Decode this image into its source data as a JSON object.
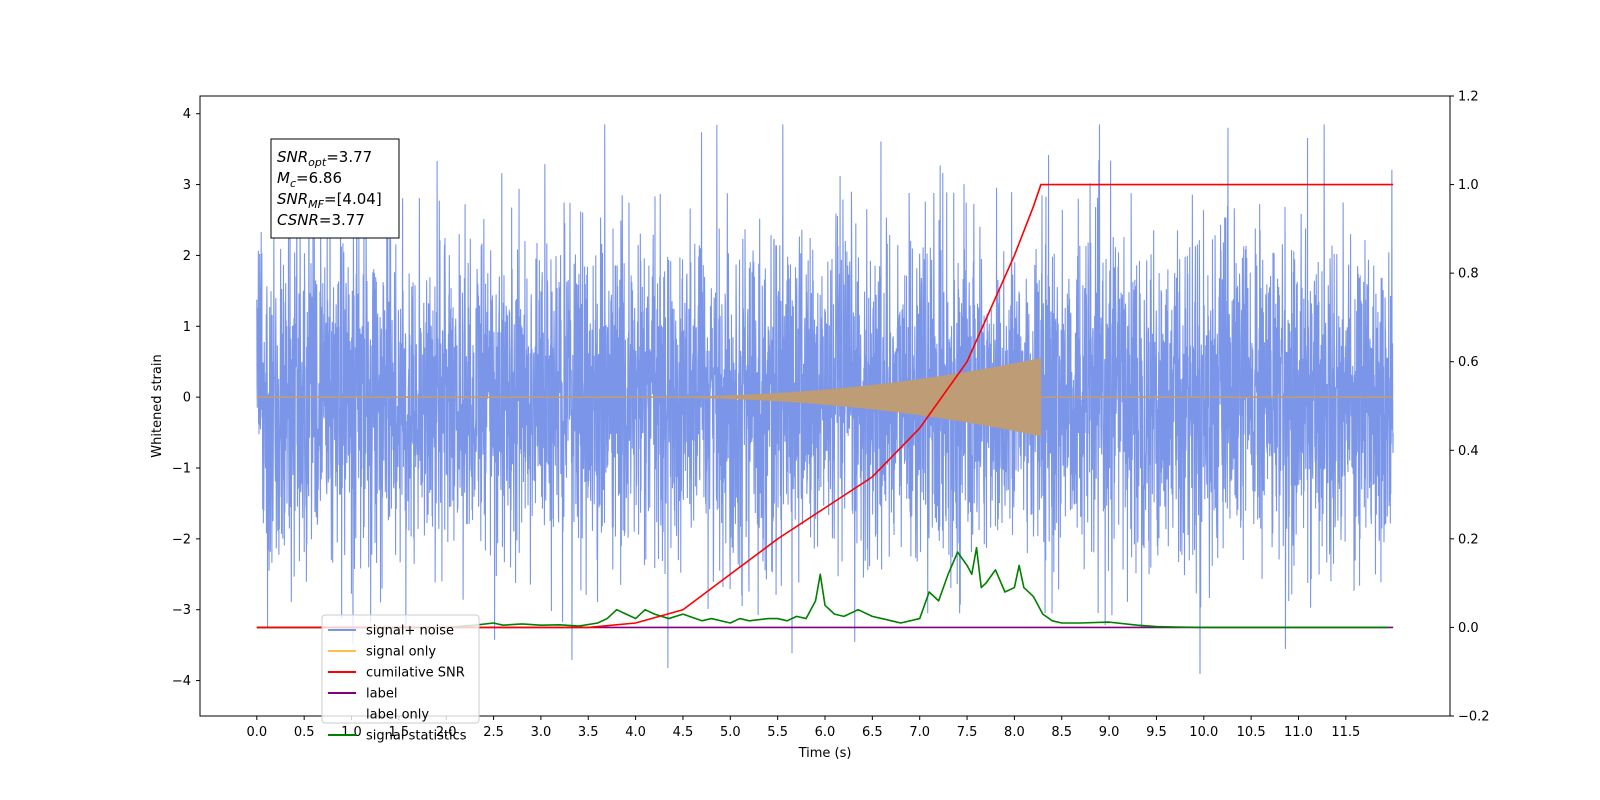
{
  "chart_data": {
    "type": "line",
    "xlabel": "Time (s)",
    "ylabel": "Whitened strain",
    "ylabel_right": "",
    "xlim": [
      -0.6,
      12.6
    ],
    "ylim": [
      -4.5,
      4.25
    ],
    "ylim_right": [
      -0.2,
      1.2
    ],
    "x_ticks": [
      0.0,
      0.5,
      1.0,
      1.5,
      2.0,
      2.5,
      3.0,
      3.5,
      4.0,
      4.5,
      5.0,
      5.5,
      6.0,
      6.5,
      7.0,
      7.5,
      8.0,
      8.5,
      9.0,
      9.5,
      10.0,
      10.5,
      11.0,
      11.5
    ],
    "x_tick_labels": [
      "0.0",
      "0.5",
      "1.0",
      "1.5",
      "2.0",
      "2.5",
      "3.0",
      "3.5",
      "4.0",
      "4.5",
      "5.0",
      "5.5",
      "6.0",
      "6.5",
      "7.0",
      "7.5",
      "8.0",
      "8.5",
      "9.0",
      "9.5",
      "10.0",
      "10.5",
      "11.0",
      "11.5"
    ],
    "y_ticks": [
      -4,
      -3,
      -2,
      -1,
      0,
      1,
      2,
      3,
      4
    ],
    "y_tick_labels": [
      "−4",
      "−3",
      "−2",
      "−1",
      "0",
      "1",
      "2",
      "3",
      "4"
    ],
    "y_ticks_right": [
      -0.2,
      0.0,
      0.2,
      0.4,
      0.6,
      0.8,
      1.0,
      1.2
    ],
    "y_tick_labels_right": [
      "−0.2",
      "0.0",
      "0.2",
      "0.4",
      "0.6",
      "0.8",
      "1.0",
      "1.2"
    ],
    "grid": false,
    "legend_placement": "lower-left",
    "annotation": {
      "lines": [
        {
          "base": "SNR",
          "sub": "opt",
          "rest": "=3.77"
        },
        {
          "base": "M",
          "sub": "c",
          "rest": "=6.86"
        },
        {
          "base": "SNR",
          "sub": "MF",
          "rest": "=[4.04]"
        },
        {
          "base": "CSNR",
          "sub": "",
          "rest": "=3.77"
        }
      ]
    },
    "series": [
      {
        "name": "signal+ noise",
        "axis": "left",
        "color": "#7b96e8",
        "time_range": [
          0.0,
          12.0
        ],
        "typical_amplitude": 2.3,
        "max": 3.85,
        "min": -4.1
      },
      {
        "name": "signal only",
        "axis": "left",
        "color": "#ffc04d",
        "overlap_color": "#bd9c76",
        "time_range": [
          0.0,
          12.0
        ],
        "chirp_start": 4.0,
        "chirp_end": 8.28,
        "peak_amplitude": 0.55
      },
      {
        "name": "cumilative SNR",
        "axis": "right",
        "color": "#ff0000",
        "x": [
          0.0,
          3.5,
          4.0,
          4.5,
          5.0,
          5.5,
          6.0,
          6.5,
          7.0,
          7.5,
          8.0,
          8.2,
          8.28,
          8.3,
          12.0
        ],
        "y": [
          0.0,
          0.0,
          0.01,
          0.04,
          0.12,
          0.2,
          0.27,
          0.34,
          0.45,
          0.6,
          0.84,
          0.95,
          1.0,
          1.0,
          1.0
        ]
      },
      {
        "name": "label",
        "axis": "right",
        "color": "#800080",
        "x": [
          0.0,
          12.0
        ],
        "y": [
          0.0,
          0.0
        ]
      },
      {
        "name": "label only",
        "axis": "right",
        "color": "#ffffff",
        "x": [],
        "y": []
      },
      {
        "name": "signal statistics",
        "axis": "right",
        "color": "#008000",
        "x": [
          0.0,
          1.0,
          2.0,
          2.3,
          2.5,
          2.6,
          2.8,
          3.0,
          3.2,
          3.4,
          3.6,
          3.7,
          3.8,
          3.9,
          4.0,
          4.1,
          4.2,
          4.35,
          4.5,
          4.7,
          4.8,
          5.0,
          5.1,
          5.2,
          5.4,
          5.5,
          5.6,
          5.7,
          5.8,
          5.9,
          5.95,
          6.0,
          6.1,
          6.2,
          6.35,
          6.5,
          6.6,
          6.8,
          7.0,
          7.1,
          7.2,
          7.3,
          7.4,
          7.5,
          7.55,
          7.6,
          7.65,
          7.7,
          7.8,
          7.9,
          8.0,
          8.05,
          8.1,
          8.2,
          8.3,
          8.4,
          8.5,
          8.7,
          9.0,
          9.3,
          9.5,
          9.7,
          10.0,
          10.5,
          11.0,
          11.5,
          11.95
        ],
        "y": [
          0.0,
          0.0,
          0.0,
          0.005,
          0.01,
          0.005,
          0.008,
          0.005,
          0.006,
          0.003,
          0.01,
          0.02,
          0.04,
          0.03,
          0.02,
          0.04,
          0.03,
          0.02,
          0.03,
          0.015,
          0.02,
          0.01,
          0.02,
          0.015,
          0.02,
          0.02,
          0.015,
          0.025,
          0.02,
          0.06,
          0.12,
          0.05,
          0.03,
          0.025,
          0.04,
          0.025,
          0.02,
          0.01,
          0.02,
          0.08,
          0.06,
          0.12,
          0.17,
          0.14,
          0.12,
          0.18,
          0.09,
          0.1,
          0.13,
          0.08,
          0.09,
          0.14,
          0.09,
          0.07,
          0.03,
          0.015,
          0.01,
          0.01,
          0.012,
          0.005,
          0.002,
          0.001,
          0.0,
          0.0,
          0.0,
          0.0,
          0.0
        ]
      }
    ]
  }
}
